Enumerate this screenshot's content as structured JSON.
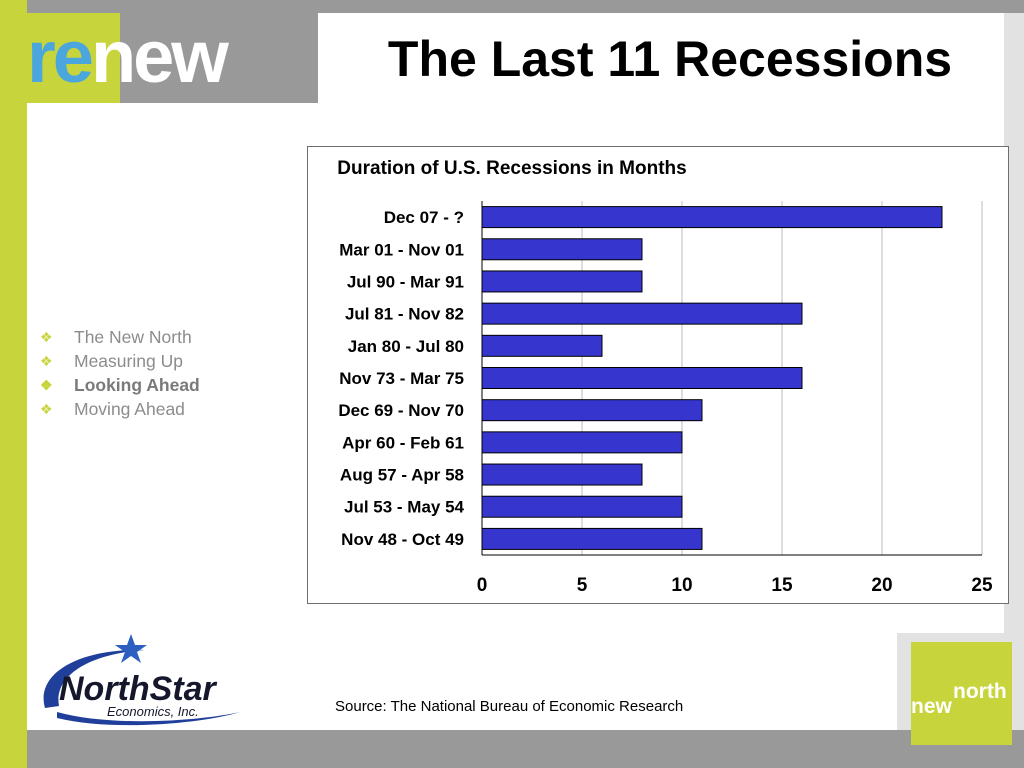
{
  "slide": {
    "title": "The Last 11 Recessions",
    "source": "Source: The National Bureau of Economic Research"
  },
  "logos": {
    "renew": {
      "part1": "re",
      "part2": "new"
    },
    "northstar": {
      "name": "NorthStar",
      "subtitle": "Economics, Inc."
    },
    "newnorth": {
      "part1": "new",
      "part2": "north"
    }
  },
  "nav": {
    "items": [
      {
        "label": "The New North",
        "active": false
      },
      {
        "label": "Measuring Up",
        "active": false
      },
      {
        "label": "Looking Ahead",
        "active": true
      },
      {
        "label": "Moving Ahead",
        "active": false
      }
    ]
  },
  "colors": {
    "bar_fill": "#3636cf",
    "accent_green": "#c8d43c",
    "logo_blue": "#4aa6dc",
    "frame_gray": "#999999"
  },
  "chart_data": {
    "type": "bar",
    "orientation": "horizontal",
    "title": "Duration of U.S. Recessions in Months",
    "categories": [
      "Dec 07 - ?",
      "Mar 01 - Nov 01",
      "Jul 90 - Mar 91",
      "Jul 81 - Nov 82",
      "Jan 80 - Jul 80",
      "Nov 73 - Mar 75",
      "Dec 69 - Nov 70",
      "Apr 60 - Feb 61",
      "Aug 57 - Apr 58",
      "Jul 53 - May 54",
      "Nov 48 - Oct 49"
    ],
    "values": [
      23,
      8,
      8,
      16,
      6,
      16,
      11,
      10,
      8,
      10,
      11
    ],
    "xlim": [
      0,
      25
    ],
    "xticks": [
      0,
      5,
      10,
      15,
      20,
      25
    ],
    "grid": true,
    "legend": "none"
  }
}
